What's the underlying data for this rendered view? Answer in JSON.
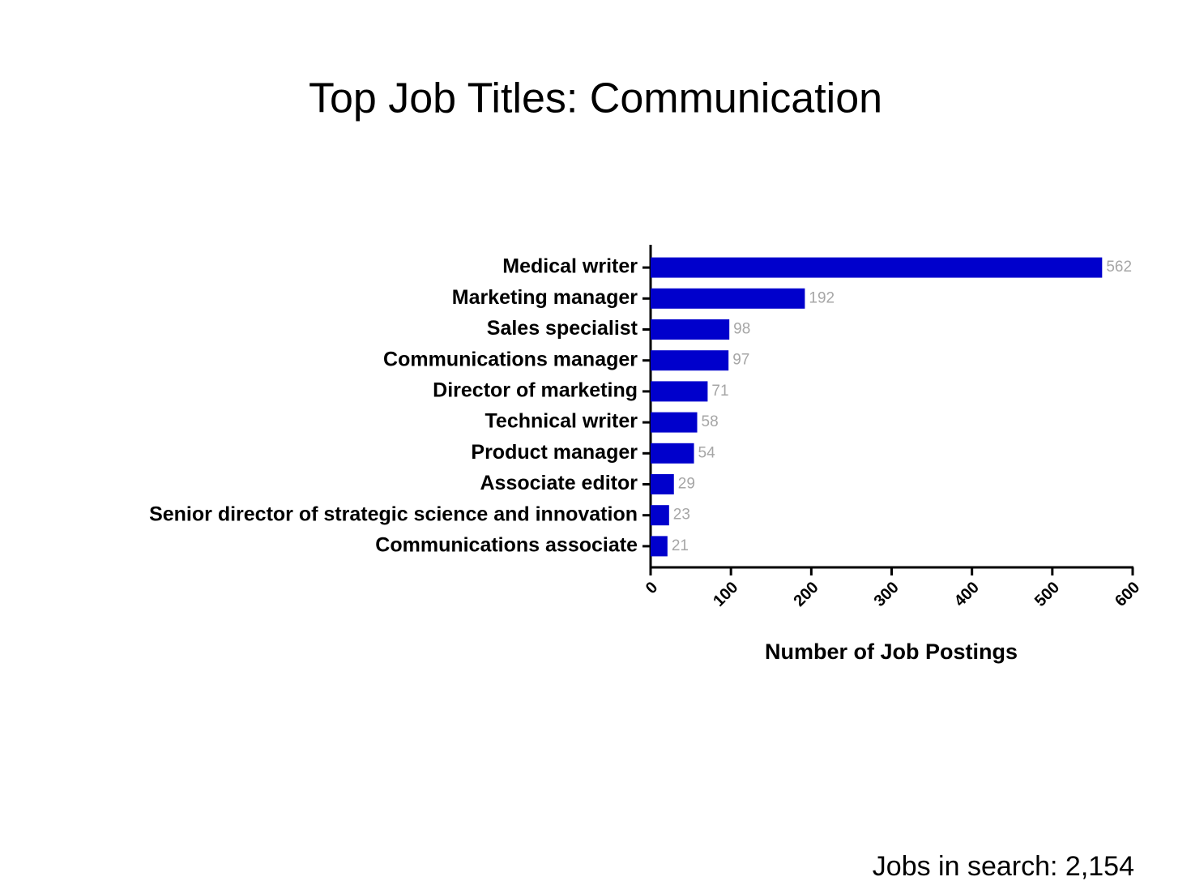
{
  "chart_data": {
    "type": "bar",
    "orientation": "horizontal",
    "title": "Top Job Titles: Communication",
    "x_label": "Number of Job Postings",
    "annotation": "Jobs in search: 2,154",
    "categories": [
      "Medical writer",
      "Marketing manager",
      "Sales specialist",
      "Communications manager",
      "Director of marketing",
      "Technical writer",
      "Product manager",
      "Associate editor",
      "Senior director of strategic science and innovation",
      "Communications associate"
    ],
    "values": [
      562,
      192,
      98,
      97,
      71,
      58,
      54,
      29,
      23,
      21
    ],
    "color": "#0000cc",
    "xlim": [
      0,
      600
    ],
    "xticks": [
      0,
      100,
      200,
      300,
      400,
      500,
      600
    ],
    "grid": false
  }
}
